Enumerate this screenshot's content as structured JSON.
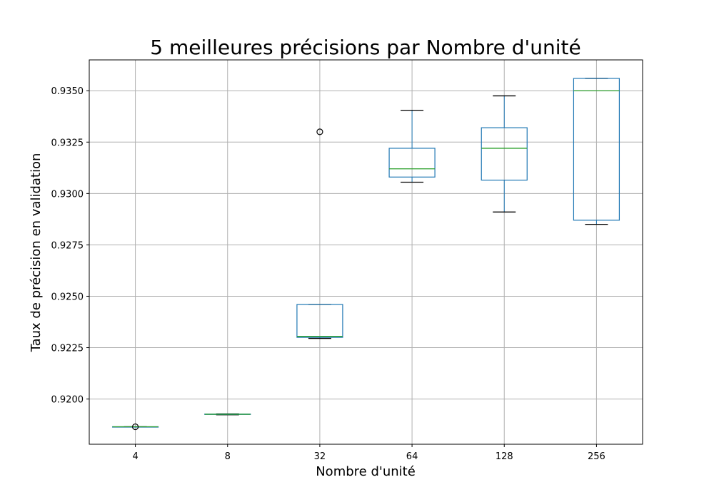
{
  "chart_data": {
    "type": "boxplot",
    "title": "5 meilleures précisions par Nombre d'unité",
    "xlabel": "Nombre d'unité",
    "ylabel": "Taux de précision en validation",
    "ylim": [
      0.9178,
      0.9365
    ],
    "yticks": [
      "0.9200",
      "0.9225",
      "0.9250",
      "0.9275",
      "0.9300",
      "0.9325",
      "0.9350"
    ],
    "grid": true,
    "categories": [
      "4",
      "8",
      "32",
      "64",
      "128",
      "256"
    ],
    "boxes": [
      {
        "whislo": 0.91865,
        "q1": 0.91865,
        "med": 0.91865,
        "q3": 0.91865,
        "whishi": 0.91865,
        "fliers": [
          0.91865
        ]
      },
      {
        "whislo": 0.91923,
        "q1": 0.91925,
        "med": 0.91926,
        "q3": 0.91927,
        "whishi": 0.91928,
        "fliers": []
      },
      {
        "whislo": 0.92295,
        "q1": 0.923,
        "med": 0.92305,
        "q3": 0.9246,
        "whishi": 0.9246,
        "fliers": [
          0.933
        ]
      },
      {
        "whislo": 0.93055,
        "q1": 0.9308,
        "med": 0.9312,
        "q3": 0.9322,
        "whishi": 0.93405,
        "fliers": []
      },
      {
        "whislo": 0.9291,
        "q1": 0.93065,
        "med": 0.9322,
        "q3": 0.9332,
        "whishi": 0.93475,
        "fliers": []
      },
      {
        "whislo": 0.9285,
        "q1": 0.9287,
        "med": 0.935,
        "q3": 0.9356,
        "whishi": 0.9356,
        "fliers": []
      }
    ],
    "colors": {
      "box": "#1f77b4",
      "median": "#2ca02c",
      "whisker_cap": "#000000",
      "grid": "#b0b0b0"
    }
  }
}
